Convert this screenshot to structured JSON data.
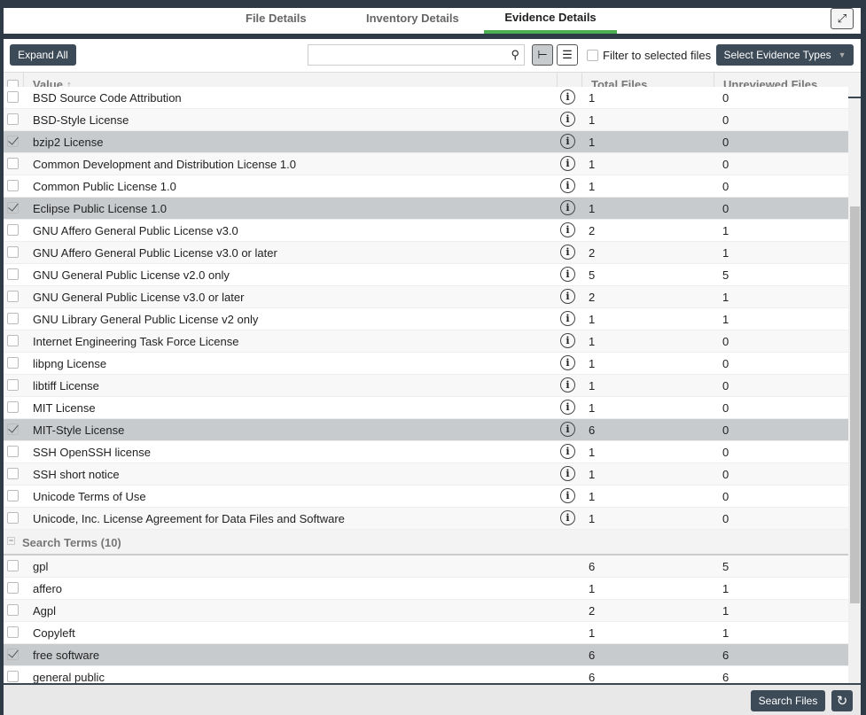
{
  "tabs": [
    {
      "label": "File Details"
    },
    {
      "label": "Inventory Details"
    },
    {
      "label": "Evidence Details",
      "active": true
    }
  ],
  "toolbar": {
    "expand_all": "Expand All",
    "search_value": "",
    "search_placeholder": "",
    "filter_label": "Filter to selected files",
    "filter_checked": false,
    "select_types": "Select Evidence Types"
  },
  "columns": {
    "value": "Value",
    "sort_icon": "arrow-up",
    "total": "Total Files",
    "unreviewed": "Unreviewed Files"
  },
  "license_rows": [
    {
      "value": "BSD Source Code Attribution",
      "total": "1",
      "unreviewed": "0",
      "checked": false
    },
    {
      "value": "BSD-Style License",
      "total": "1",
      "unreviewed": "0",
      "checked": false
    },
    {
      "value": "bzip2 License",
      "total": "1",
      "unreviewed": "0",
      "checked": true
    },
    {
      "value": "Common Development and Distribution License 1.0",
      "total": "1",
      "unreviewed": "0",
      "checked": false
    },
    {
      "value": "Common Public License 1.0",
      "total": "1",
      "unreviewed": "0",
      "checked": false
    },
    {
      "value": "Eclipse Public License 1.0",
      "total": "1",
      "unreviewed": "0",
      "checked": true
    },
    {
      "value": "GNU Affero General Public License v3.0",
      "total": "2",
      "unreviewed": "1",
      "checked": false
    },
    {
      "value": "GNU Affero General Public License v3.0 or later",
      "total": "2",
      "unreviewed": "1",
      "checked": false
    },
    {
      "value": "GNU General Public License v2.0 only",
      "total": "5",
      "unreviewed": "5",
      "checked": false
    },
    {
      "value": "GNU General Public License v3.0 or later",
      "total": "2",
      "unreviewed": "1",
      "checked": false
    },
    {
      "value": "GNU Library General Public License v2 only",
      "total": "1",
      "unreviewed": "1",
      "checked": false
    },
    {
      "value": "Internet Engineering Task Force License",
      "total": "1",
      "unreviewed": "0",
      "checked": false
    },
    {
      "value": "libpng License",
      "total": "1",
      "unreviewed": "0",
      "checked": false
    },
    {
      "value": "libtiff License",
      "total": "1",
      "unreviewed": "0",
      "checked": false
    },
    {
      "value": "MIT License",
      "total": "1",
      "unreviewed": "0",
      "checked": false
    },
    {
      "value": "MIT-Style License",
      "total": "6",
      "unreviewed": "0",
      "checked": true
    },
    {
      "value": "SSH OpenSSH license",
      "total": "1",
      "unreviewed": "0",
      "checked": false
    },
    {
      "value": "SSH short notice",
      "total": "1",
      "unreviewed": "0",
      "checked": false
    },
    {
      "value": "Unicode Terms of Use",
      "total": "1",
      "unreviewed": "0",
      "checked": false
    },
    {
      "value": "Unicode, Inc. License Agreement for Data Files and Software",
      "total": "1",
      "unreviewed": "0",
      "checked": false
    }
  ],
  "search_group": {
    "label": "Search Terms (10)"
  },
  "search_rows": [
    {
      "value": " gpl",
      "total": "6",
      "unreviewed": "5",
      "checked": false
    },
    {
      "value": "affero",
      "total": "1",
      "unreviewed": "1",
      "checked": false
    },
    {
      "value": "Agpl",
      "total": "2",
      "unreviewed": "1",
      "checked": false
    },
    {
      "value": "Copyleft",
      "total": "1",
      "unreviewed": "1",
      "checked": false
    },
    {
      "value": "free software",
      "total": "6",
      "unreviewed": "6",
      "checked": true
    },
    {
      "value": "general public",
      "total": "6",
      "unreviewed": "6",
      "checked": false
    }
  ],
  "footer": {
    "search_files": "Search Files",
    "refresh_icon": "refresh-icon"
  }
}
